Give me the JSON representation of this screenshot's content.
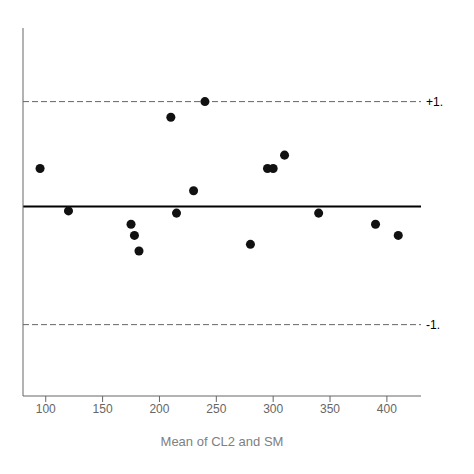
{
  "chart_data": {
    "type": "scatter",
    "xlabel": "Mean of CL2 and SM",
    "x": [
      95,
      120,
      175,
      178,
      182,
      210,
      215,
      230,
      240,
      280,
      295,
      300,
      310,
      340,
      390,
      410
    ],
    "values": [
      22,
      3,
      -3,
      -8,
      -15,
      45,
      2,
      12,
      52,
      -12,
      22,
      22,
      28,
      2,
      -3,
      -8
    ],
    "color": "#111111",
    "marker": "circle",
    "xlim": [
      80,
      430
    ],
    "ylim": [
      -80,
      85
    ],
    "xticks": [
      100,
      150,
      200,
      250,
      300,
      350,
      400
    ],
    "tick_labels": "x",
    "grid": false,
    "hlines": [
      {
        "value": 5,
        "color": "#000000",
        "line_style": "solid"
      },
      {
        "value": 52,
        "color": "#666666",
        "line_style": "dashed",
        "label": "+1."
      },
      {
        "value": -48,
        "color": "#666666",
        "line_style": "dashed",
        "label": "-1."
      }
    ]
  }
}
